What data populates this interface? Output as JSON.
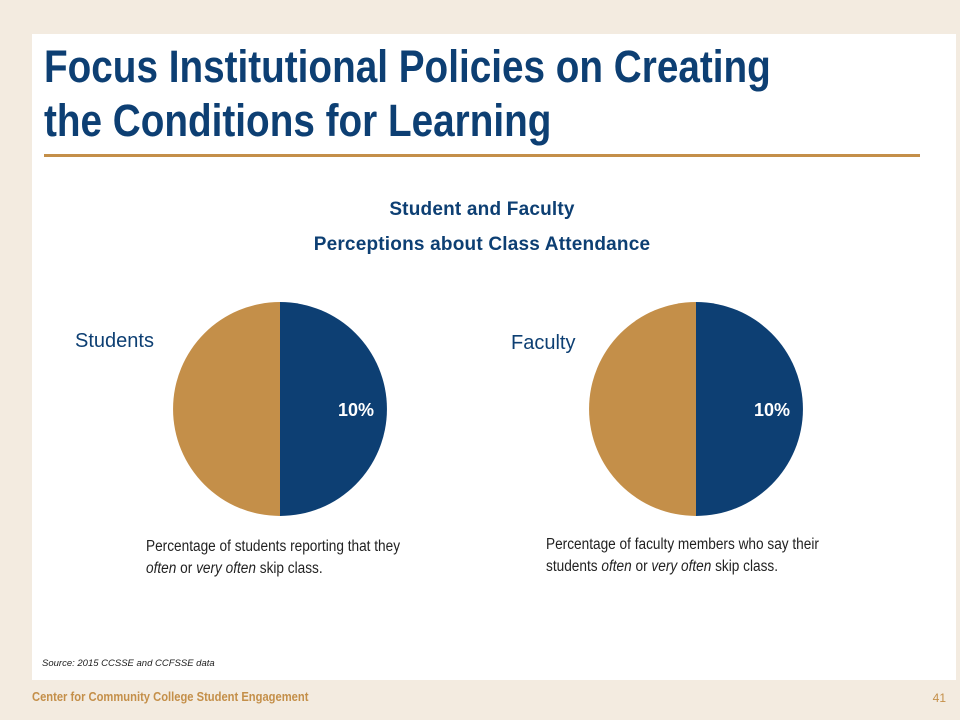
{
  "slide": {
    "title_line1": "Focus Institutional Policies on Creating",
    "title_line2": "the Conditions for Learning",
    "source": "Source: 2015 CCSSE and CCFSSE data",
    "footer_org": "Center for Community College Student Engagement",
    "page_number": "41"
  },
  "colors": {
    "navy": "#0d3f73",
    "gold": "#c48f49"
  },
  "chart_data": {
    "type": "pie",
    "title_line1": "Student and Faculty",
    "title_line2": "Perceptions about Class Attendance",
    "pies": [
      {
        "label": "Students",
        "highlight_value": 10,
        "highlight_label": "10%",
        "caption_line1": "Percentage of students reporting that they",
        "caption_line2_parts": [
          "often",
          " or ",
          "very often",
          " skip class."
        ]
      },
      {
        "label": "Faculty",
        "highlight_value": 10,
        "highlight_label": "10%",
        "caption_line1": "Percentage of faculty members who say their",
        "caption_line2_parts": [
          "students ",
          "often",
          " or ",
          "very often",
          " skip class."
        ]
      }
    ]
  }
}
